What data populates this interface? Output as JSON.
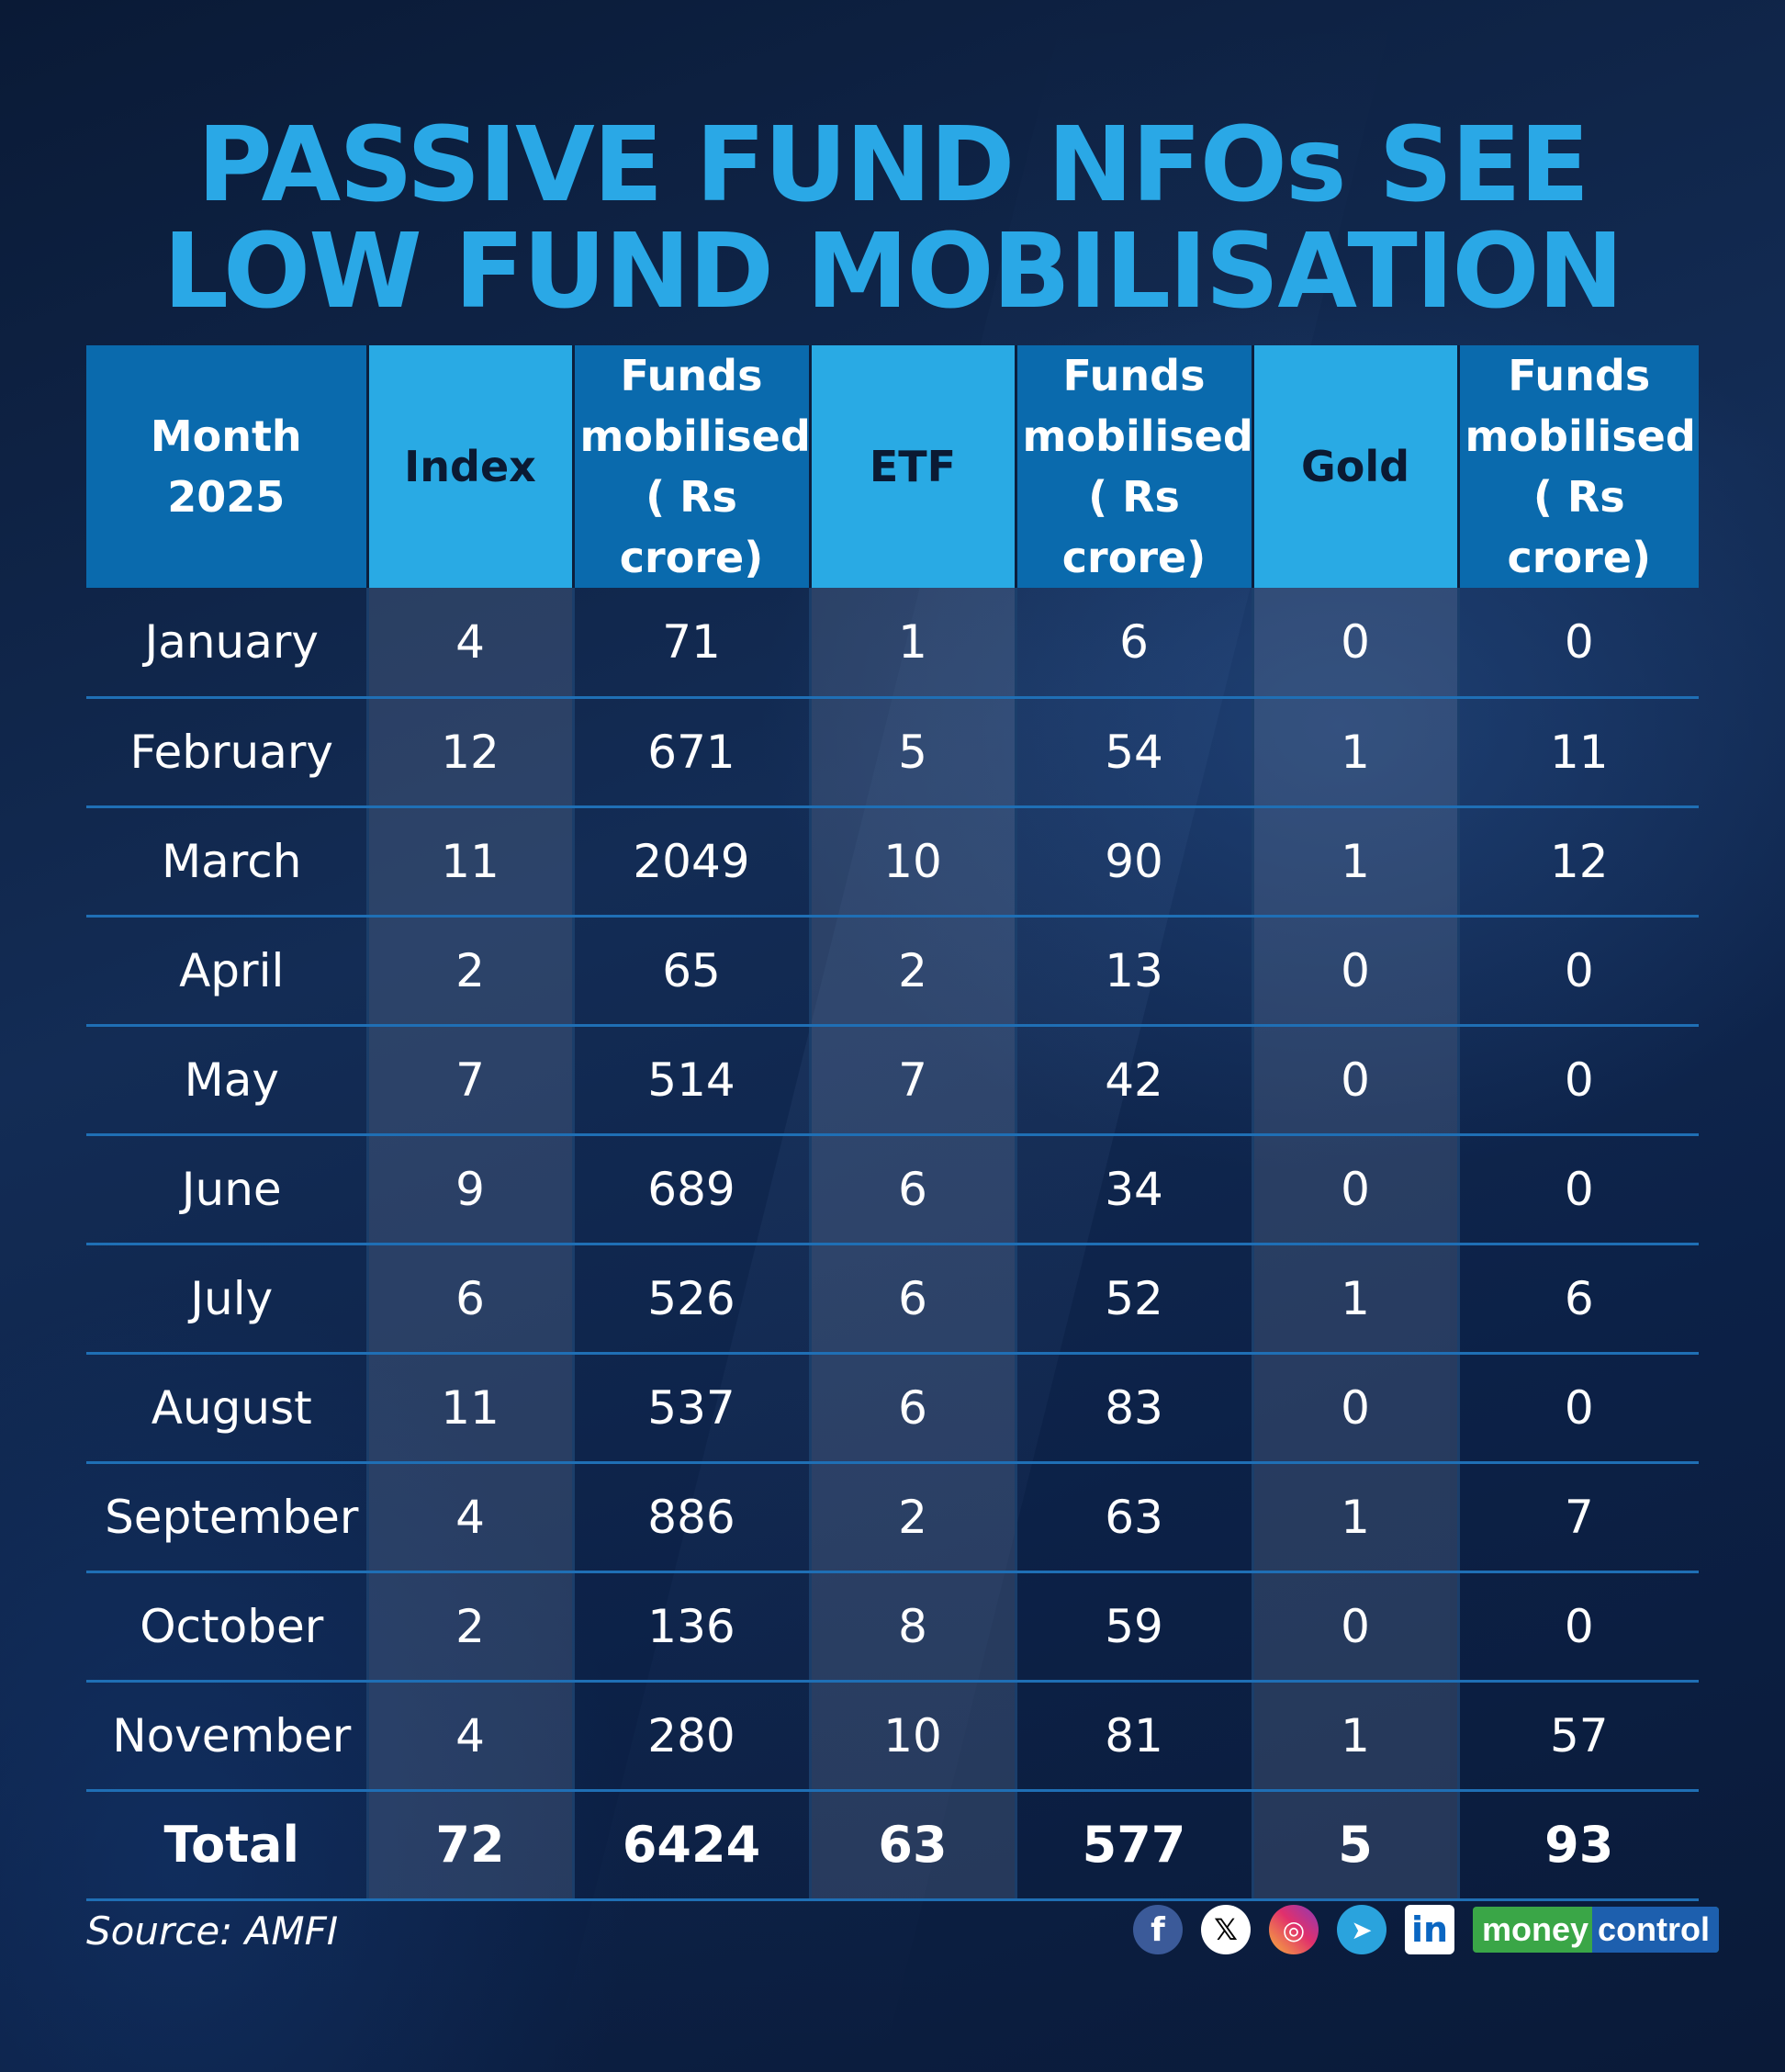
{
  "title_line1": "PASSIVE FUND NFOs SEE",
  "title_line2": "LOW FUND MOBILISATION",
  "headers": {
    "month": "Month 2025",
    "index": "Index",
    "funds1_l1": "Funds",
    "funds1_l2": "mobilised",
    "funds1_l3": "( Rs crore)",
    "etf": "ETF",
    "funds2_l1": "Funds",
    "funds2_l2": "mobilised",
    "funds2_l3": "( Rs crore)",
    "gold": "Gold",
    "funds3_l1": "Funds",
    "funds3_l2": "mobilised",
    "funds3_l3": "( Rs crore)"
  },
  "rows": [
    {
      "month": "January",
      "index": "4",
      "index_funds": "71",
      "etf": "1",
      "etf_funds": "6",
      "gold": "0",
      "gold_funds": "0"
    },
    {
      "month": "February",
      "index": "12",
      "index_funds": "671",
      "etf": "5",
      "etf_funds": "54",
      "gold": "1",
      "gold_funds": "11"
    },
    {
      "month": "March",
      "index": "11",
      "index_funds": "2049",
      "etf": "10",
      "etf_funds": "90",
      "gold": "1",
      "gold_funds": "12"
    },
    {
      "month": "April",
      "index": "2",
      "index_funds": "65",
      "etf": "2",
      "etf_funds": "13",
      "gold": "0",
      "gold_funds": "0"
    },
    {
      "month": "May",
      "index": "7",
      "index_funds": "514",
      "etf": "7",
      "etf_funds": "42",
      "gold": "0",
      "gold_funds": "0"
    },
    {
      "month": "June",
      "index": "9",
      "index_funds": "689",
      "etf": "6",
      "etf_funds": "34",
      "gold": "0",
      "gold_funds": "0"
    },
    {
      "month": "July",
      "index": "6",
      "index_funds": "526",
      "etf": "6",
      "etf_funds": "52",
      "gold": "1",
      "gold_funds": "6"
    },
    {
      "month": "August",
      "index": "11",
      "index_funds": "537",
      "etf": "6",
      "etf_funds": "83",
      "gold": "0",
      "gold_funds": "0"
    },
    {
      "month": "September",
      "index": "4",
      "index_funds": "886",
      "etf": "2",
      "etf_funds": "63",
      "gold": "1",
      "gold_funds": "7"
    },
    {
      "month": "October",
      "index": "2",
      "index_funds": "136",
      "etf": "8",
      "etf_funds": "59",
      "gold": "0",
      "gold_funds": "0"
    },
    {
      "month": "November",
      "index": "4",
      "index_funds": "280",
      "etf": "10",
      "etf_funds": "81",
      "gold": "1",
      "gold_funds": "57"
    }
  ],
  "total": {
    "month": "Total",
    "index": "72",
    "index_funds": "6424",
    "etf": "63",
    "etf_funds": "577",
    "gold": "5",
    "gold_funds": "93"
  },
  "source": "Source: AMFI",
  "icons": {
    "facebook": "f",
    "x": "𝕏",
    "instagram": "◎",
    "telegram": "➤",
    "linkedin": "in"
  },
  "brand": {
    "money": "money",
    "control": "control"
  },
  "colors": {
    "title": "#2aa8e6",
    "header_dark": "#0a6aad",
    "header_light": "#29aae4",
    "row_divider": "#1f6fb5",
    "background": "#0f2344"
  }
}
